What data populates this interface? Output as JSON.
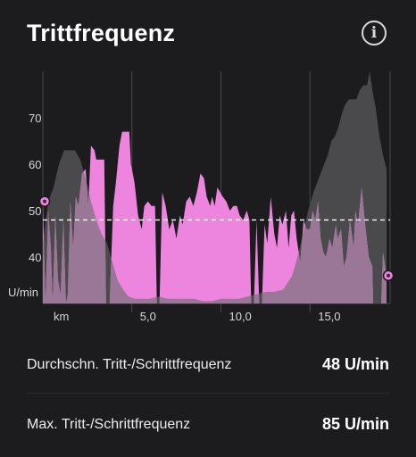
{
  "header": {
    "title": "Trittfrequenz",
    "info_icon": "info-icon",
    "info_glyph": "i"
  },
  "colors": {
    "background": "#1c1c1e",
    "cadence_fill": "#ed85de",
    "elevation_fill": "#4a4a4c",
    "overlap_fill": "#9a7796",
    "marker": "#ed85de"
  },
  "chart_data": {
    "type": "area",
    "title": "",
    "xlabel": "km",
    "ylabel": "U/min",
    "xlim": [
      0,
      19.5
    ],
    "ylim": [
      30,
      80
    ],
    "x_ticks": [
      5,
      10,
      15
    ],
    "x_tick_labels": [
      "5,0",
      "10,0",
      "15,0"
    ],
    "y_ticks": [
      40,
      50,
      60,
      70
    ],
    "y_tick_labels": [
      "40",
      "50",
      "60",
      "70"
    ],
    "average_line": 48,
    "grid": true,
    "series": [
      {
        "name": "",
        "kind": "cadence",
        "points": [
          [
            0.0,
            52
          ],
          [
            0.15,
            30
          ],
          [
            0.3,
            50
          ],
          [
            0.45,
            42
          ],
          [
            0.55,
            30
          ],
          [
            0.7,
            49
          ],
          [
            0.85,
            35
          ],
          [
            1.0,
            32
          ],
          [
            1.15,
            48
          ],
          [
            1.3,
            30
          ],
          [
            1.4,
            32
          ],
          [
            1.55,
            52
          ],
          [
            1.7,
            42
          ],
          [
            1.85,
            53
          ],
          [
            2.0,
            51
          ],
          [
            2.2,
            58
          ],
          [
            2.4,
            59
          ],
          [
            2.55,
            51
          ],
          [
            2.7,
            64
          ],
          [
            2.9,
            63
          ],
          [
            3.0,
            61
          ],
          [
            3.45,
            61
          ],
          [
            3.55,
            30
          ],
          [
            3.75,
            30
          ],
          [
            3.95,
            51
          ],
          [
            4.1,
            56
          ],
          [
            4.3,
            64
          ],
          [
            4.45,
            67
          ],
          [
            4.85,
            67
          ],
          [
            4.95,
            60
          ],
          [
            5.15,
            56
          ],
          [
            5.35,
            49
          ],
          [
            5.55,
            46
          ],
          [
            5.7,
            51
          ],
          [
            5.9,
            52
          ],
          [
            6.1,
            51
          ],
          [
            6.3,
            51
          ],
          [
            6.4,
            30
          ],
          [
            6.55,
            30
          ],
          [
            6.7,
            54
          ],
          [
            6.9,
            51
          ],
          [
            7.1,
            46
          ],
          [
            7.3,
            48
          ],
          [
            7.5,
            44
          ],
          [
            7.7,
            49
          ],
          [
            7.85,
            47
          ],
          [
            8.05,
            52
          ],
          [
            8.25,
            53
          ],
          [
            8.45,
            51
          ],
          [
            8.65,
            54
          ],
          [
            8.85,
            58
          ],
          [
            9.05,
            57
          ],
          [
            9.2,
            53
          ],
          [
            9.4,
            51
          ],
          [
            9.5,
            53
          ],
          [
            9.65,
            51
          ],
          [
            9.8,
            55
          ],
          [
            10.1,
            53
          ],
          [
            10.3,
            52
          ],
          [
            10.5,
            50
          ],
          [
            10.7,
            51
          ],
          [
            10.9,
            51
          ],
          [
            11.05,
            49
          ],
          [
            11.25,
            48
          ],
          [
            11.45,
            50
          ],
          [
            11.6,
            48
          ],
          [
            11.7,
            30
          ],
          [
            11.85,
            30
          ],
          [
            12.0,
            48
          ],
          [
            12.15,
            30
          ],
          [
            12.3,
            30
          ],
          [
            12.45,
            47
          ],
          [
            12.6,
            43
          ],
          [
            12.8,
            53
          ],
          [
            13.0,
            45
          ],
          [
            13.15,
            42
          ],
          [
            13.3,
            49
          ],
          [
            13.45,
            47
          ],
          [
            13.65,
            50
          ],
          [
            13.8,
            42
          ],
          [
            13.95,
            49
          ],
          [
            14.1,
            50
          ],
          [
            14.25,
            44
          ],
          [
            14.45,
            39
          ],
          [
            14.65,
            48
          ],
          [
            14.8,
            46
          ],
          [
            15.0,
            46
          ],
          [
            15.15,
            50
          ],
          [
            15.3,
            48
          ],
          [
            15.45,
            52
          ],
          [
            15.6,
            44
          ],
          [
            15.75,
            41
          ],
          [
            15.9,
            40
          ],
          [
            16.1,
            44
          ],
          [
            16.25,
            42
          ],
          [
            16.45,
            47
          ],
          [
            16.55,
            44
          ],
          [
            16.75,
            46
          ],
          [
            16.9,
            38
          ],
          [
            17.05,
            40
          ],
          [
            17.25,
            48
          ],
          [
            17.45,
            42
          ],
          [
            17.55,
            50
          ],
          [
            17.7,
            47
          ],
          [
            17.9,
            55
          ],
          [
            18.1,
            47
          ],
          [
            18.3,
            40
          ],
          [
            18.5,
            38
          ],
          [
            18.55,
            30
          ],
          [
            19.0,
            30
          ],
          [
            19.1,
            41
          ],
          [
            19.3,
            36
          ]
        ]
      },
      {
        "name": "",
        "kind": "elevation",
        "points": [
          [
            0.0,
            43
          ],
          [
            0.3,
            52
          ],
          [
            0.6,
            55
          ],
          [
            0.9,
            60
          ],
          [
            1.2,
            63
          ],
          [
            1.5,
            63
          ],
          [
            1.8,
            63
          ],
          [
            2.1,
            61
          ],
          [
            2.4,
            57
          ],
          [
            2.7,
            52
          ],
          [
            3.0,
            48
          ],
          [
            3.3,
            45
          ],
          [
            3.6,
            43
          ],
          [
            3.9,
            39
          ],
          [
            4.2,
            35
          ],
          [
            4.5,
            33
          ],
          [
            4.8,
            31.5
          ],
          [
            5.2,
            31
          ],
          [
            5.6,
            31
          ],
          [
            6.0,
            31
          ],
          [
            6.5,
            31.5
          ],
          [
            7.0,
            31
          ],
          [
            7.5,
            31
          ],
          [
            8.0,
            31
          ],
          [
            8.5,
            31
          ],
          [
            9.0,
            30.5
          ],
          [
            9.5,
            30.5
          ],
          [
            10.0,
            31
          ],
          [
            10.5,
            31
          ],
          [
            11.0,
            31
          ],
          [
            11.5,
            31.5
          ],
          [
            12.0,
            32
          ],
          [
            12.5,
            32.5
          ],
          [
            13.0,
            32.5
          ],
          [
            13.5,
            33
          ],
          [
            14.0,
            36
          ],
          [
            14.3,
            40
          ],
          [
            14.6,
            45
          ],
          [
            14.9,
            50
          ],
          [
            15.2,
            54
          ],
          [
            15.5,
            57
          ],
          [
            15.8,
            60
          ],
          [
            16.0,
            62
          ],
          [
            16.2,
            65
          ],
          [
            16.4,
            66
          ],
          [
            16.6,
            68
          ],
          [
            16.8,
            71
          ],
          [
            17.0,
            73
          ],
          [
            17.2,
            74
          ],
          [
            17.4,
            74
          ],
          [
            17.6,
            74
          ],
          [
            17.8,
            76
          ],
          [
            18.0,
            77
          ],
          [
            18.2,
            77
          ],
          [
            18.35,
            80
          ],
          [
            18.5,
            76
          ],
          [
            18.7,
            72
          ],
          [
            18.9,
            66
          ],
          [
            19.1,
            62
          ],
          [
            19.3,
            59
          ]
        ]
      }
    ],
    "markers": [
      [
        0.1,
        52
      ],
      [
        19.3,
        36
      ]
    ]
  },
  "stats": [
    {
      "label": "Durchschn. Tritt-/Schrittfrequenz",
      "value": "48 U/min"
    },
    {
      "label": "Max. Tritt-/Schrittfrequenz",
      "value": "85 U/min"
    }
  ]
}
